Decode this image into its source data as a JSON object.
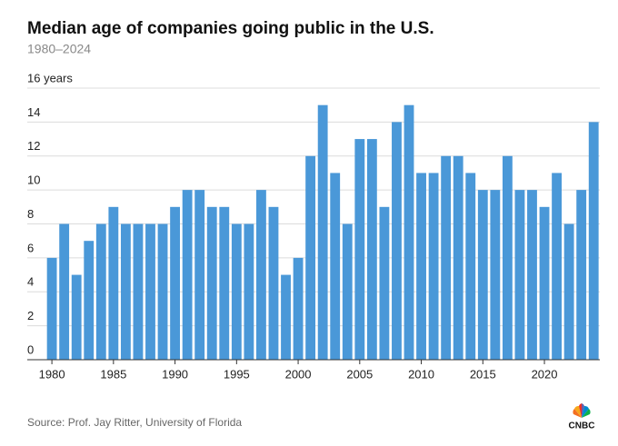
{
  "chart_data": {
    "type": "bar",
    "title": "Median age of companies going public in the U.S.",
    "subtitle": "1980–2024",
    "source": "Source: Prof. Jay Ritter, University of Florida",
    "logo": "CNBC",
    "x": [
      1980,
      1981,
      1982,
      1983,
      1984,
      1985,
      1986,
      1987,
      1988,
      1989,
      1990,
      1991,
      1992,
      1993,
      1994,
      1995,
      1996,
      1997,
      1998,
      1999,
      2000,
      2001,
      2002,
      2003,
      2004,
      2005,
      2006,
      2007,
      2008,
      2009,
      2010,
      2011,
      2012,
      2013,
      2014,
      2015,
      2016,
      2017,
      2018,
      2019,
      2020,
      2021,
      2022,
      2023,
      2024
    ],
    "values": [
      6,
      8,
      5,
      7,
      8,
      9,
      8,
      8,
      8,
      8,
      9,
      10,
      10,
      9,
      9,
      8,
      8,
      10,
      9,
      5,
      6,
      12,
      15,
      11,
      8,
      13,
      13,
      9,
      14,
      15,
      11,
      11,
      12,
      12,
      11,
      10,
      10,
      12,
      10,
      10,
      9,
      11,
      8,
      10,
      14
    ],
    "color": "#4a98d8",
    "xlim": [
      1978,
      2024.5
    ],
    "xticks": [
      1980,
      1985,
      1990,
      1995,
      2000,
      2005,
      2010,
      2015,
      2020
    ],
    "ylim": [
      0,
      16
    ],
    "yticks": [
      0,
      2,
      4,
      6,
      8,
      10,
      12,
      {
        "value": 16,
        "label": "16 years"
      },
      14
    ],
    "grid": true
  }
}
